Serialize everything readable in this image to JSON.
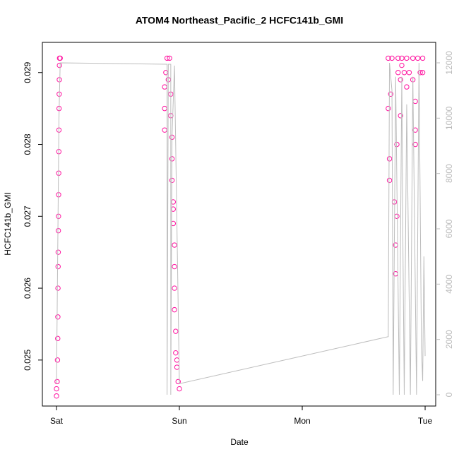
{
  "chart_data": {
    "type": "scatter",
    "title": "ATOM4 Northeast_Pacific_2 HCFC141b_GMI",
    "xlabel": "Date",
    "ylabel": "HCFC141b_GMI",
    "xlim": [
      -0.115,
      3.086
    ],
    "xticks": [
      {
        "value": 0,
        "label": "Sat"
      },
      {
        "value": 1,
        "label": "Sun"
      },
      {
        "value": 2,
        "label": "Mon"
      },
      {
        "value": 3,
        "label": "Tue"
      }
    ],
    "ylim": [
      0.02436,
      0.02942
    ],
    "yticks": [
      0.025,
      0.026,
      0.027,
      0.028,
      0.029
    ],
    "y2lim": [
      -408,
      12740
    ],
    "y2ticks": [
      0,
      2000,
      4000,
      6000,
      8000,
      10000,
      12000
    ],
    "series": [
      {
        "color": "#ff14a0",
        "x": [
          0.0,
          0.0,
          0.005,
          0.008,
          0.01,
          0.011,
          0.012,
          0.013,
          0.014,
          0.015,
          0.016,
          0.017,
          0.018,
          0.019,
          0.02,
          0.021,
          0.022,
          0.023,
          0.024,
          0.025,
          0.03,
          0.88,
          0.88,
          0.88,
          0.89,
          0.9,
          0.91,
          0.92,
          0.93,
          0.93,
          0.94,
          0.94,
          0.94,
          0.95,
          0.95,
          0.95,
          0.96,
          0.96,
          0.96,
          0.96,
          0.97,
          0.97,
          0.98,
          0.98,
          0.99,
          1.0,
          2.7,
          2.7,
          2.71,
          2.71,
          2.72,
          2.73,
          2.75,
          2.76,
          2.76,
          2.77,
          2.77,
          2.78,
          2.78,
          2.8,
          2.8,
          2.81,
          2.81,
          2.83,
          2.85,
          2.85,
          2.87,
          2.9,
          2.9,
          2.92,
          2.92,
          2.92,
          2.94,
          2.96,
          2.98,
          2.98
        ],
        "values": [
          0.0245,
          0.0246,
          0.0247,
          0.025,
          0.0253,
          0.0256,
          0.026,
          0.0263,
          0.0265,
          0.0268,
          0.027,
          0.0273,
          0.0276,
          0.0279,
          0.0282,
          0.0285,
          0.0287,
          0.0289,
          0.0291,
          0.0292,
          0.0292,
          0.0282,
          0.0285,
          0.0288,
          0.029,
          0.0292,
          0.0289,
          0.0292,
          0.0287,
          0.0284,
          0.0281,
          0.0278,
          0.0275,
          0.0272,
          0.0271,
          0.0269,
          0.0266,
          0.0263,
          0.026,
          0.0257,
          0.0254,
          0.0251,
          0.025,
          0.0249,
          0.0247,
          0.0246,
          0.0292,
          0.0285,
          0.0278,
          0.0275,
          0.0287,
          0.0292,
          0.0272,
          0.0262,
          0.0266,
          0.027,
          0.028,
          0.029,
          0.0292,
          0.0289,
          0.0284,
          0.0291,
          0.0292,
          0.029,
          0.0292,
          0.0288,
          0.029,
          0.0292,
          0.0289,
          0.0282,
          0.028,
          0.0286,
          0.0292,
          0.029,
          0.0292,
          0.029
        ]
      },
      {
        "color": "#bdbdbd",
        "axis": "y2",
        "x": [
          0,
          0.02,
          0.03,
          0.9,
          0.9,
          0.91,
          0.93,
          0.93,
          0.94,
          0.96,
          1.0,
          2.7,
          2.71,
          2.73,
          2.74,
          2.76,
          2.79,
          2.81,
          2.82,
          2.83,
          2.85,
          2.88,
          2.9,
          2.93,
          2.95,
          2.97,
          2.98,
          2.99,
          3.0
        ],
        "values": [
          400,
          10000,
          12000,
          11950,
          0,
          11950,
          11950,
          0,
          9300,
          11900,
          400,
          2100,
          12000,
          11000,
          0,
          11500,
          0,
          11500,
          5000,
          0,
          10500,
          0,
          11500,
          0,
          12000,
          1700,
          500,
          5000,
          1400
        ]
      }
    ]
  }
}
